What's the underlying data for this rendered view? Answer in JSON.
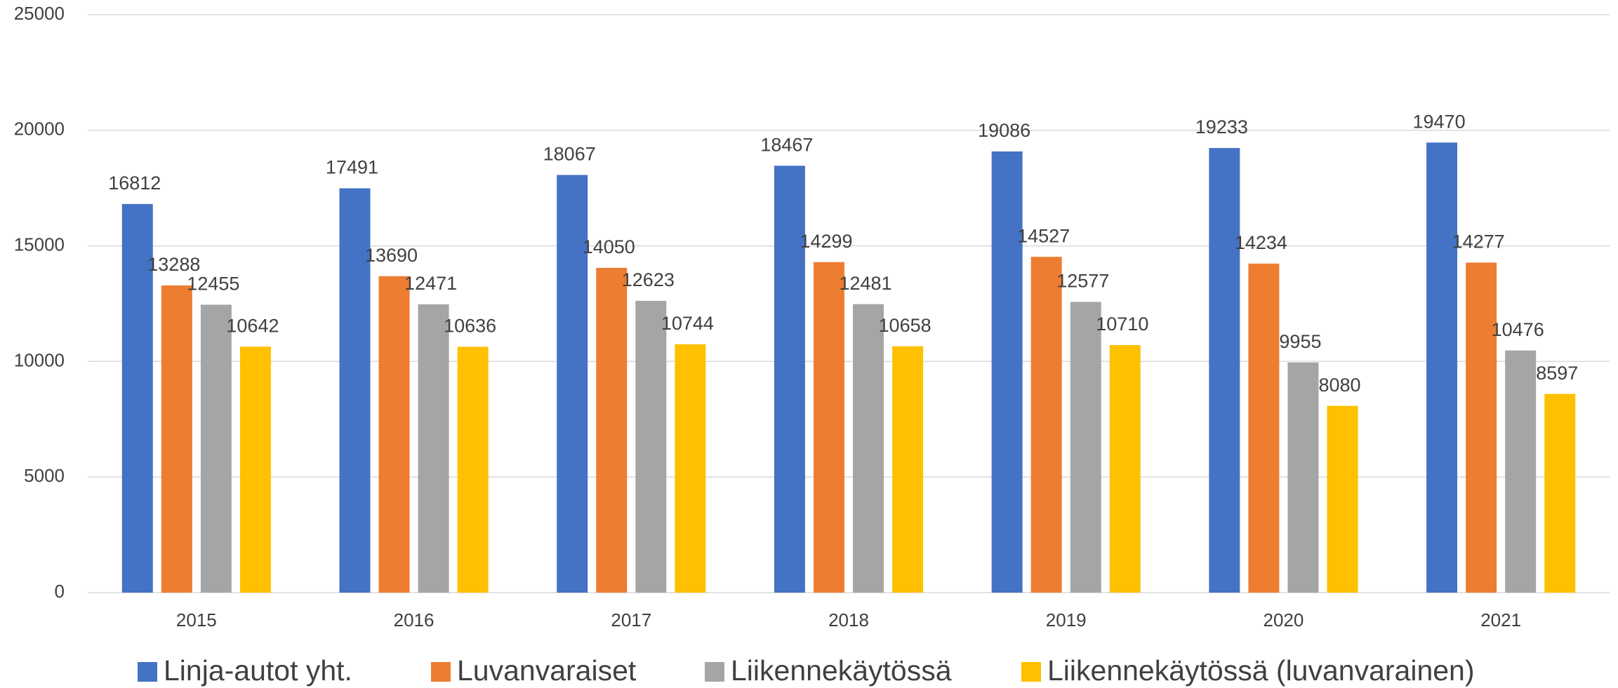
{
  "chart_data": {
    "type": "bar",
    "categories": [
      "2015",
      "2016",
      "2017",
      "2018",
      "2019",
      "2020",
      "2021"
    ],
    "series": [
      {
        "name": "Linja-autot yht.",
        "color": "#4472c4",
        "values": [
          16812,
          17491,
          18067,
          18467,
          19086,
          19233,
          19470
        ]
      },
      {
        "name": "Luvanvaraiset",
        "color": "#ed7d31",
        "values": [
          13288,
          13690,
          14050,
          14299,
          14527,
          14234,
          14277
        ]
      },
      {
        "name": "Liikennekäytössä",
        "color": "#a5a5a5",
        "values": [
          12455,
          12471,
          12623,
          12481,
          12577,
          9955,
          10476
        ]
      },
      {
        "name": "Liikennekäytössä (luvanvarainen)",
        "color": "#ffc000",
        "values": [
          10642,
          10636,
          10744,
          10658,
          10710,
          8080,
          8597
        ]
      }
    ],
    "ylim": [
      0,
      25000
    ],
    "yticks": [
      0,
      5000,
      10000,
      15000,
      20000,
      25000
    ],
    "grid": true,
    "legend": "bottom"
  }
}
